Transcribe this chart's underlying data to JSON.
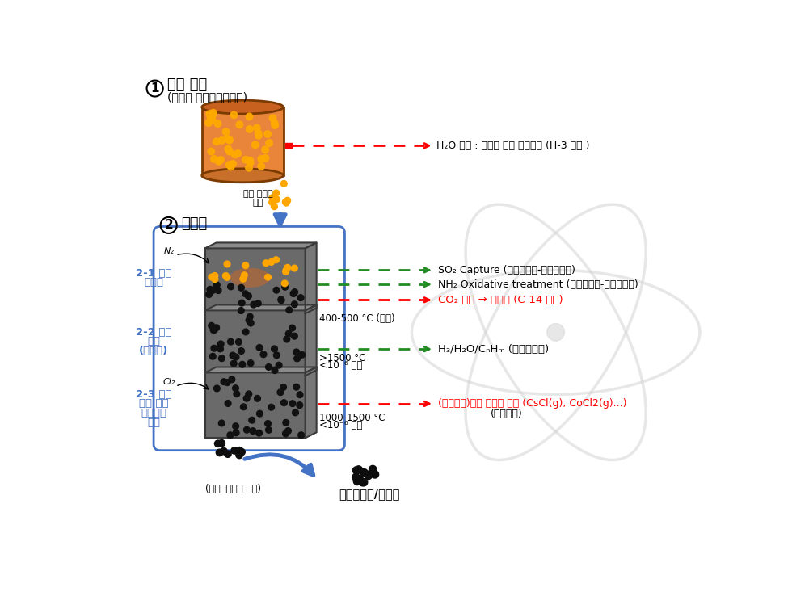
{
  "bg_color": "#ffffff",
  "step1_title": "수분 건조",
  "step1_subtitle": "(밀폐형 수분건조시스템)",
  "step1_arrow": "H₂O 회수 : 방사성 폐수 처리계통 (H-3 포함 )",
  "funnel_label1": "건조 폐수지",
  "funnel_label2": "투입",
  "step2_title": "진공로",
  "n2_label": "N₂",
  "cl2_label": "Cl₂",
  "label_21a": "2-1 단계",
  "label_21b": "탈가스",
  "label_22a": "2-2 단계",
  "label_22b": "탄화",
  "label_22c": "(광물화)",
  "label_23a": "2-3 단계",
  "label_23b": "무기 핵종",
  "label_23c": "염화증발",
  "label_23d": "분리",
  "temp_21": "400-500 °C (상압)",
  "temp_22a": ">1500 °C",
  "temp_22b": "<10⁻⁶ 기압",
  "temp_23a": "1000-1500 °C",
  "temp_23b": "<10⁻⁶ 기압",
  "arrow1": "SO₂ Capture (일반폐기물-양이온수지)",
  "arrow2": "NH₂ Oxidative treatment (일반폐기물-음이온수지)",
  "arrow3": "CO₂ 포집 → 광물화 (C-14 포함)",
  "arrow4": "H₃/H₂O/CₙHₘ (일반폐기물)",
  "arrow5a": "(무기핵종)금속 염화물 증기 (CsCl(g), CoCl2(g)...)",
  "arrow5b": "(응축회수)",
  "bottom1": "(규제면제조건 만족)",
  "bottom2": "산업폐기물/재활용",
  "blue": "#4472C4",
  "green": "#228B22",
  "red": "#FF0000",
  "gray_dark": "#555555",
  "gray_mid": "#777777",
  "gray_light": "#999999"
}
